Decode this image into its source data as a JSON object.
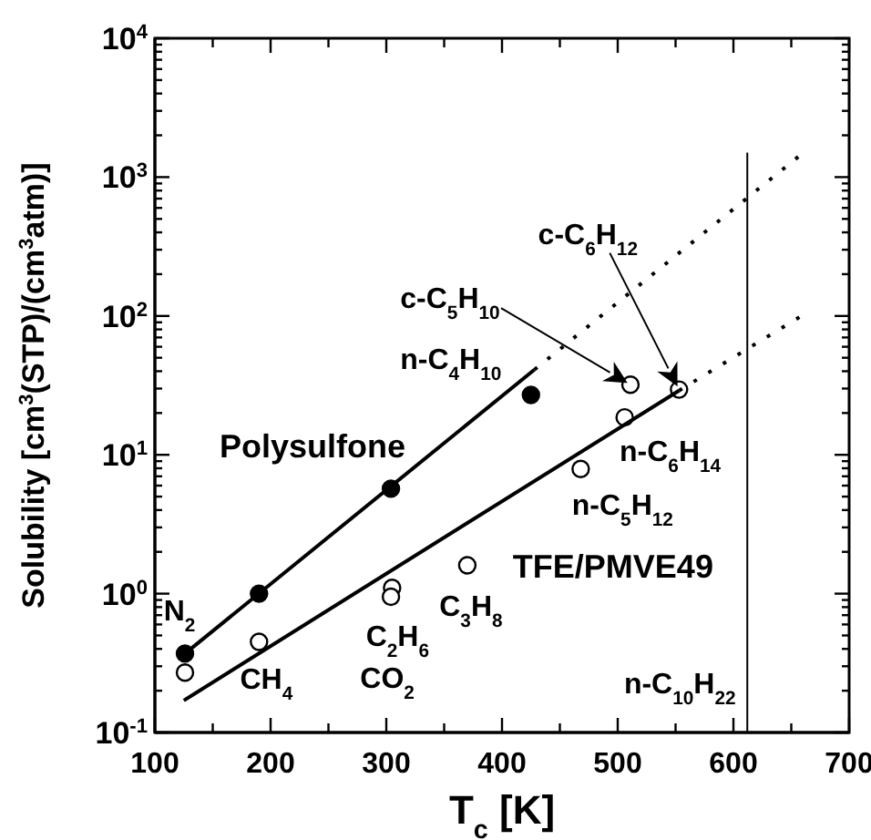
{
  "chart_data": {
    "type": "scatter",
    "xlabel": "T$_{c}$ [K]",
    "ylabel": "Solubility [cm$^{3}$(STP)/(cm$^{3}$atm)]",
    "log": "y",
    "xlim": [
      100,
      700
    ],
    "ylim": [
      0.1,
      10000
    ],
    "xticks": [
      100,
      {
        "value": 150,
        "label": null
      },
      200,
      {
        "value": 250,
        "label": null
      },
      300,
      {
        "value": 350,
        "label": null
      },
      400,
      {
        "value": 450,
        "label": null
      },
      500,
      {
        "value": 550,
        "label": null
      },
      600,
      {
        "value": 650,
        "label": null
      },
      700
    ],
    "yticks": [
      {
        "value": 0.1,
        "label": "10$^{-1}$"
      },
      {
        "value": 0.2,
        "label": null
      },
      {
        "value": 0.3,
        "label": null
      },
      {
        "value": 0.4,
        "label": null
      },
      {
        "value": 0.5,
        "label": null
      },
      {
        "value": 0.6,
        "label": null
      },
      {
        "value": 0.7,
        "label": null
      },
      {
        "value": 0.8,
        "label": null
      },
      {
        "value": 0.9,
        "label": null
      },
      {
        "value": 1,
        "label": "10$^{0}$"
      },
      {
        "value": 2,
        "label": null
      },
      {
        "value": 3,
        "label": null
      },
      {
        "value": 4,
        "label": null
      },
      {
        "value": 5,
        "label": null
      },
      {
        "value": 6,
        "label": null
      },
      {
        "value": 7,
        "label": null
      },
      {
        "value": 8,
        "label": null
      },
      {
        "value": 9,
        "label": null
      },
      {
        "value": 10,
        "label": "10$^{1}$"
      },
      {
        "value": 20,
        "label": null
      },
      {
        "value": 30,
        "label": null
      },
      {
        "value": 40,
        "label": null
      },
      {
        "value": 50,
        "label": null
      },
      {
        "value": 60,
        "label": null
      },
      {
        "value": 70,
        "label": null
      },
      {
        "value": 80,
        "label": null
      },
      {
        "value": 90,
        "label": null
      },
      {
        "value": 100,
        "label": "10$^{2}$"
      },
      {
        "value": 200,
        "label": null
      },
      {
        "value": 300,
        "label": null
      },
      {
        "value": 400,
        "label": null
      },
      {
        "value": 500,
        "label": null
      },
      {
        "value": 600,
        "label": null
      },
      {
        "value": 700,
        "label": null
      },
      {
        "value": 800,
        "label": null
      },
      {
        "value": 900,
        "label": null
      },
      {
        "value": 1000,
        "label": "10$^{3}$"
      },
      {
        "value": 2000,
        "label": null
      },
      {
        "value": 3000,
        "label": null
      },
      {
        "value": 4000,
        "label": null
      },
      {
        "value": 5000,
        "label": null
      },
      {
        "value": 6000,
        "label": null
      },
      {
        "value": 7000,
        "label": null
      },
      {
        "value": 8000,
        "label": null
      },
      {
        "value": 9000,
        "label": null
      },
      {
        "value": 10000,
        "label": "10$^{4}$"
      }
    ],
    "series": [
      {
        "name": "Polysulfone",
        "marker": "circle",
        "color": "#000000",
        "x": [
          126,
          190,
          304,
          425
        ],
        "values": [
          0.37,
          1.0,
          5.7,
          27
        ]
      },
      {
        "name": "TFE/PMVE49",
        "marker": "circle",
        "color": "#ffffff",
        "x": [
          126,
          190,
          305,
          304,
          370,
          468,
          506,
          511,
          553
        ],
        "values": [
          0.27,
          0.45,
          1.1,
          0.95,
          1.6,
          7.9,
          18.6,
          32,
          29.5
        ]
      },
      {
        "type": "line",
        "marker": "none",
        "color": "#000000",
        "line_style": "solid",
        "x": [
          126,
          428
        ],
        "values": [
          0.37,
          41
        ]
      },
      {
        "type": "line",
        "marker": "none",
        "color": "#000000",
        "line_style": "dotted",
        "x": [
          428,
          656
        ],
        "values": [
          41,
          1400
        ]
      },
      {
        "type": "line",
        "marker": "none",
        "color": "#000000",
        "line_style": "solid",
        "x": [
          125,
          553
        ],
        "values": [
          0.17,
          29
        ]
      },
      {
        "type": "line",
        "marker": "none",
        "color": "#000000",
        "line_style": "dotted",
        "x": [
          553,
          657
        ],
        "values": [
          29,
          98
        ]
      },
      {
        "type": "line",
        "marker": "none",
        "color": "#000000",
        "line_style": "solid",
        "x": [
          612,
          612
        ],
        "values": [
          0.1,
          1500
        ]
      }
    ],
    "annotations": [
      {
        "text": "N$_{2}$",
        "x": 126,
        "y": 0.37
      },
      {
        "text": "CH$_{4}$",
        "x": 190,
        "y": 0.45
      },
      {
        "text": "C$_{2}$H$_{6}$",
        "x": 305,
        "y": 1.1
      },
      {
        "text": "CO$_{2}$",
        "x": 304,
        "y": 0.95
      },
      {
        "text": "C$_{3}$H$_{8}$",
        "x": 370,
        "y": 1.6
      },
      {
        "text": "n-C$_{4}$H$_{10}$",
        "x": 425,
        "y": 27
      },
      {
        "text": "n-C$_{5}$H$_{12}$",
        "x": 468,
        "y": 7.9
      },
      {
        "text": "n-C$_{6}$H$_{14}$",
        "x": 506,
        "y": 18.6
      },
      "c-C$_{5}$H$_{10}$",
      "c-C$_{6}$H$_{12}$",
      {
        "text": "n-C$_{10}$H$_{22}$",
        "x": 612,
        "y": 0.23
      }
    ]
  }
}
